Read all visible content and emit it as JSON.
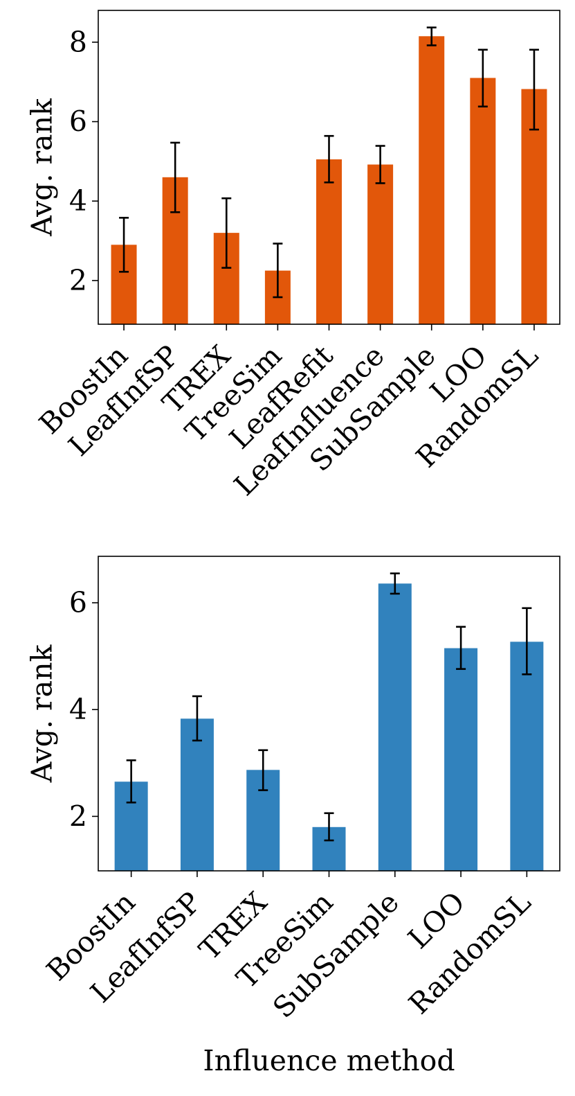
{
  "chart_data": [
    {
      "type": "bar",
      "title": "",
      "xlabel": "",
      "ylabel": "Avg. rank",
      "ylim": [
        0.9,
        8.8
      ],
      "yticks": [
        2,
        4,
        6,
        8
      ],
      "grid": false,
      "bar_color": "#e2570a",
      "categories": [
        "BoostIn",
        "LeafInfSP",
        "TREX",
        "TreeSim",
        "LeafRefit",
        "LeafInfluence",
        "SubSample",
        "LOO",
        "RandomSL"
      ],
      "values": [
        2.9,
        4.6,
        3.2,
        2.25,
        5.05,
        4.92,
        8.15,
        7.1,
        6.82
      ],
      "err_low": [
        2.22,
        3.72,
        2.32,
        1.58,
        4.47,
        4.45,
        7.92,
        6.38,
        5.8
      ],
      "err_high": [
        3.58,
        5.47,
        4.07,
        2.93,
        5.64,
        5.39,
        8.37,
        7.81,
        7.81
      ]
    },
    {
      "type": "bar",
      "title": "",
      "xlabel": "Influence method",
      "ylabel": "Avg. rank",
      "ylim": [
        0.98,
        6.87
      ],
      "yticks": [
        2,
        4,
        6
      ],
      "grid": false,
      "bar_color": "#3182bd",
      "categories": [
        "BoostIn",
        "LeafInfSP",
        "TREX",
        "TreeSim",
        "SubSample",
        "LOO",
        "RandomSL"
      ],
      "values": [
        2.65,
        3.83,
        2.87,
        1.8,
        6.36,
        5.15,
        5.27
      ],
      "err_low": [
        2.26,
        3.42,
        2.49,
        1.55,
        6.17,
        4.76,
        4.66
      ],
      "err_high": [
        3.05,
        4.25,
        3.24,
        2.06,
        6.55,
        5.55,
        5.9
      ]
    }
  ]
}
